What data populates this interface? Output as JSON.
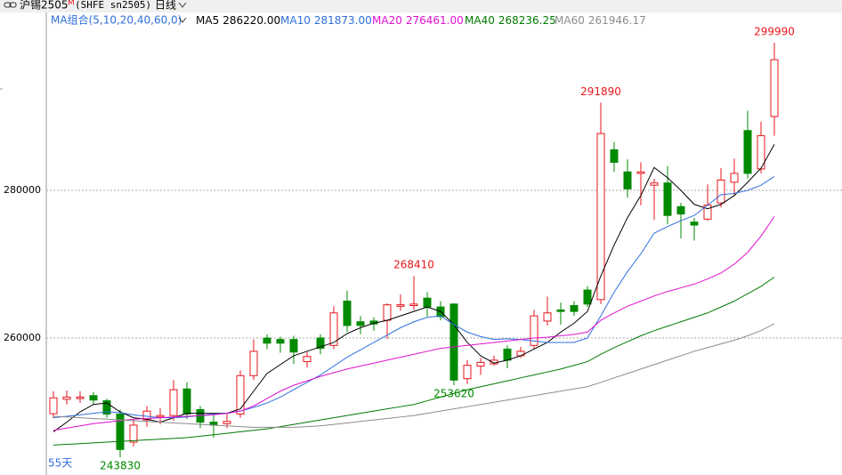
{
  "header": {
    "symbol": "沪锡2505",
    "flag": "M",
    "code": "(SHFE sn2505)",
    "period": "日线",
    "ma_group": "MA组合(5,10,20,40,60,0)"
  },
  "chart_data": {
    "type": "candlestick",
    "ylim": [
      242000,
      302000
    ],
    "yticks": [
      260000,
      280000
    ],
    "grid": true,
    "up_color": "#e8161b",
    "down_color": "#008a00",
    "day_count": "55天",
    "annotations": [
      243830,
      268410,
      253620,
      291890,
      299990
    ],
    "open": [
      249750,
      251700,
      251800,
      252200,
      251500,
      249700,
      245900,
      248900,
      249300,
      249500,
      253100,
      250300,
      248600,
      248400,
      249700,
      254900,
      260000,
      259800,
      259800,
      256800,
      260000,
      259000,
      265000,
      262200,
      262300,
      262400,
      264300,
      264400,
      265400,
      264200,
      264600,
      254500,
      256200,
      256500,
      258500,
      257600,
      259000,
      262300,
      263800,
      264400,
      266500,
      265200,
      285500,
      282500,
      282300,
      280700,
      281000,
      277800,
      275700,
      276100,
      278300,
      281100,
      288100,
      282900,
      290000
    ],
    "high": [
      252800,
      252900,
      252800,
      252700,
      251800,
      250300,
      249000,
      250800,
      250500,
      254300,
      254000,
      250800,
      249500,
      249700,
      255600,
      259800,
      260500,
      260200,
      260300,
      258100,
      260500,
      264300,
      266400,
      263000,
      262800,
      264700,
      265900,
      268410,
      266200,
      265000,
      264700,
      257000,
      257300,
      257600,
      259000,
      258800,
      263800,
      265600,
      264800,
      265000,
      267000,
      291890,
      286500,
      284200,
      283800,
      281600,
      283300,
      278300,
      276300,
      280800,
      283000,
      284300,
      290800,
      289300,
      299990
    ],
    "low": [
      249150,
      251000,
      251200,
      251000,
      249200,
      243830,
      245300,
      248000,
      248300,
      248800,
      249000,
      247800,
      246500,
      247800,
      249200,
      254300,
      258500,
      258000,
      256500,
      256000,
      257800,
      258500,
      260800,
      260500,
      261000,
      259900,
      263700,
      263800,
      262900,
      262400,
      253620,
      253800,
      255000,
      256300,
      255900,
      257300,
      258500,
      261700,
      261800,
      263000,
      264200,
      264600,
      282500,
      279000,
      278000,
      276000,
      275400,
      273500,
      273200,
      275900,
      277700,
      279200,
      281600,
      282300,
      287400
    ],
    "close": [
      251900,
      252000,
      252000,
      251600,
      249700,
      244900,
      248200,
      250100,
      249500,
      253000,
      249700,
      248600,
      248200,
      248700,
      254900,
      258200,
      259300,
      259300,
      258100,
      257500,
      258600,
      263400,
      261700,
      261700,
      261900,
      264500,
      264500,
      264600,
      264200,
      262900,
      254300,
      256300,
      256700,
      257000,
      257000,
      258200,
      263000,
      263400,
      263600,
      263600,
      264600,
      287700,
      283800,
      280200,
      282500,
      281000,
      276600,
      276800,
      275300,
      278000,
      281400,
      282300,
      282300,
      287400,
      297700
    ],
    "series": [
      {
        "name": "MA5",
        "color": "#000000",
        "last_label": "286220.00",
        "values": [
          247300,
          248600,
          250000,
          251000,
          251200,
          250000,
          249200,
          249000,
          248600,
          249200,
          249800,
          249800,
          249800,
          249800,
          250400,
          252800,
          255200,
          256400,
          257600,
          258200,
          258800,
          259400,
          260600,
          261400,
          262000,
          262400,
          263000,
          263600,
          264200,
          263600,
          261800,
          259400,
          257600,
          256600,
          257000,
          257600,
          258500,
          259400,
          260800,
          262000,
          263600,
          268400,
          272600,
          276300,
          279300,
          283100,
          281700,
          280000,
          278100,
          277500,
          278100,
          279300,
          281100,
          283000,
          286220
        ]
      },
      {
        "name": "MA10",
        "color": "#2f6fdc",
        "last_label": "281873.00",
        "values": [
          249200,
          249400,
          249600,
          249800,
          250000,
          249900,
          249600,
          249400,
          249200,
          249200,
          249300,
          249500,
          249700,
          249800,
          250100,
          250600,
          251200,
          252000,
          253000,
          254000,
          255000,
          256200,
          257400,
          258400,
          259400,
          260400,
          261400,
          262200,
          262800,
          263000,
          261800,
          260800,
          260200,
          259800,
          259900,
          259800,
          259600,
          259400,
          259400,
          259400,
          260000,
          263000,
          266200,
          269000,
          271400,
          274200,
          275100,
          275900,
          276600,
          278000,
          279400,
          279600,
          280000,
          280700,
          281873
        ]
      },
      {
        "name": "MA20",
        "color": "#e010d0",
        "last_label": "276461.00",
        "values": [
          247500,
          247800,
          248100,
          248400,
          248600,
          248800,
          249000,
          249100,
          249200,
          249300,
          249400,
          249500,
          249600,
          249800,
          250100,
          250800,
          251800,
          252800,
          253600,
          254200,
          254800,
          255300,
          255800,
          256200,
          256600,
          257000,
          257400,
          257800,
          258200,
          258600,
          258800,
          259000,
          259200,
          259400,
          259600,
          259800,
          260000,
          260100,
          260300,
          260500,
          260800,
          262400,
          263400,
          264300,
          265000,
          265700,
          266300,
          266800,
          267300,
          268000,
          268800,
          270000,
          271600,
          273800,
          276461
        ]
      },
      {
        "name": "MA40",
        "color": "#007a00",
        "last_label": "268236.25",
        "values": [
          245500,
          245600,
          245700,
          245800,
          245900,
          246000,
          246100,
          246200,
          246300,
          246400,
          246500,
          246700,
          246900,
          247100,
          247300,
          247500,
          247700,
          248000,
          248300,
          248600,
          248900,
          249200,
          249500,
          249800,
          250100,
          250400,
          250700,
          251000,
          251500,
          252000,
          252500,
          253000,
          253400,
          253800,
          254200,
          254600,
          255000,
          255400,
          255800,
          256300,
          256800,
          257800,
          258700,
          259500,
          260300,
          261000,
          261600,
          262200,
          262800,
          263400,
          264200,
          265000,
          266000,
          267000,
          268236
        ]
      },
      {
        "name": "MA60",
        "color": "#8c8c8c",
        "last_label": "261946.17",
        "values": [
          249400,
          249300,
          249200,
          249100,
          249000,
          248900,
          248800,
          248700,
          248600,
          248500,
          248400,
          248300,
          248200,
          248100,
          248000,
          247900,
          247900,
          247900,
          247900,
          248000,
          248100,
          248300,
          248500,
          248700,
          248900,
          249100,
          249300,
          249500,
          249800,
          250100,
          250400,
          250700,
          251000,
          251300,
          251600,
          251900,
          252200,
          252500,
          252800,
          253100,
          253400,
          254000,
          254600,
          255200,
          255800,
          256400,
          257000,
          257600,
          258200,
          258700,
          259200,
          259700,
          260300,
          261000,
          261946
        ]
      }
    ]
  }
}
